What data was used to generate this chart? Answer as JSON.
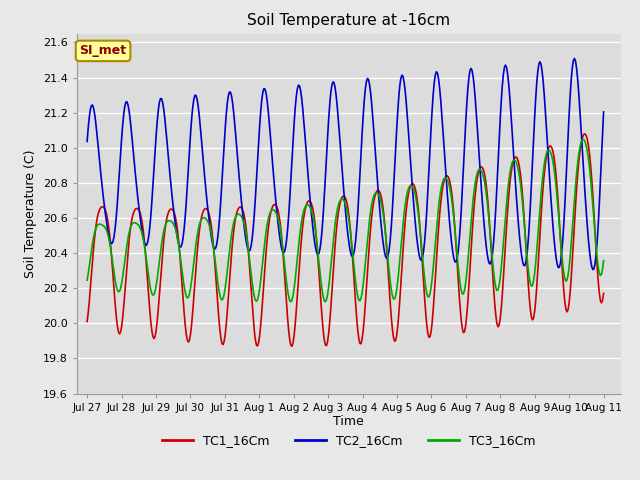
{
  "title": "Soil Temperature at -16cm",
  "xlabel": "Time",
  "ylabel": "Soil Temperature (C)",
  "ylim": [
    19.6,
    21.65
  ],
  "yticks": [
    19.6,
    19.8,
    20.0,
    20.2,
    20.4,
    20.6,
    20.8,
    21.0,
    21.2,
    21.4,
    21.6
  ],
  "bg_color": "#e8e8e8",
  "plot_bg": "#dcdcdc",
  "grid_color": "#ffffff",
  "tc1_color": "#cc0000",
  "tc2_color": "#0000cc",
  "tc3_color": "#00aa00",
  "legend_labels": [
    "TC1_16Cm",
    "TC2_16Cm",
    "TC3_16Cm"
  ],
  "annotation_text": "SI_met",
  "annotation_bg": "#ffff99",
  "annotation_border": "#aa8800",
  "n_points": 480,
  "xtick_positions": [
    0,
    1,
    2,
    3,
    4,
    5,
    6,
    7,
    8,
    9,
    10,
    11,
    12,
    13,
    14,
    15
  ],
  "xtick_labels": [
    "Jul 27",
    "Jul 28",
    "Jul 29",
    "Jul 30",
    "Jul 31",
    "Aug 1",
    "Aug 2",
    "Aug 3",
    "Aug 4",
    "Aug 5",
    "Aug 6",
    "Aug 7",
    "Aug 8",
    "Aug 9",
    "Aug 10",
    "Aug 11"
  ]
}
